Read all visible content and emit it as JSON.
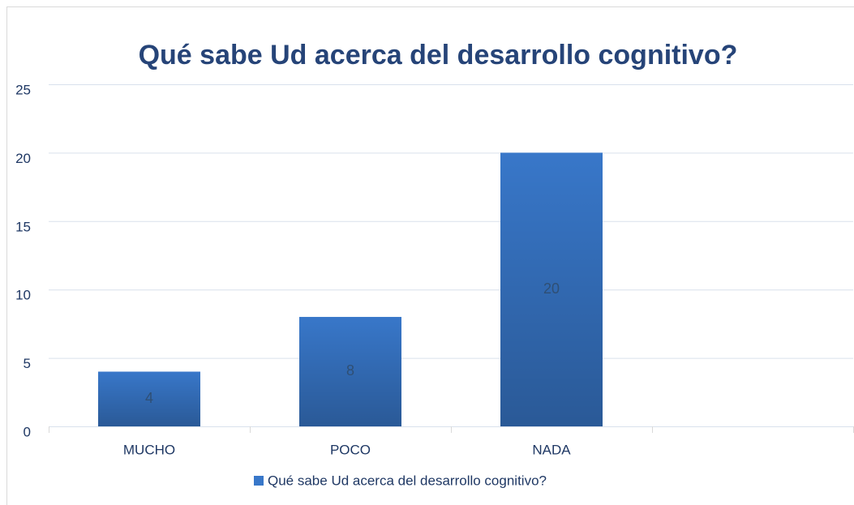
{
  "chart_data": {
    "type": "bar",
    "title": "Qué sabe Ud acerca del desarrollo cognitivo?",
    "categories": [
      "MUCHO",
      "POCO",
      "NADA",
      null
    ],
    "series": [
      {
        "name": "Qué sabe Ud acerca del desarrollo cognitivo?",
        "color": "#3877c9",
        "values": [
          4,
          8,
          20,
          null
        ]
      }
    ],
    "ylim": [
      0,
      25
    ],
    "yticks": [
      0,
      5,
      10,
      15,
      20,
      25
    ],
    "grid": true,
    "legend": "bottom"
  }
}
